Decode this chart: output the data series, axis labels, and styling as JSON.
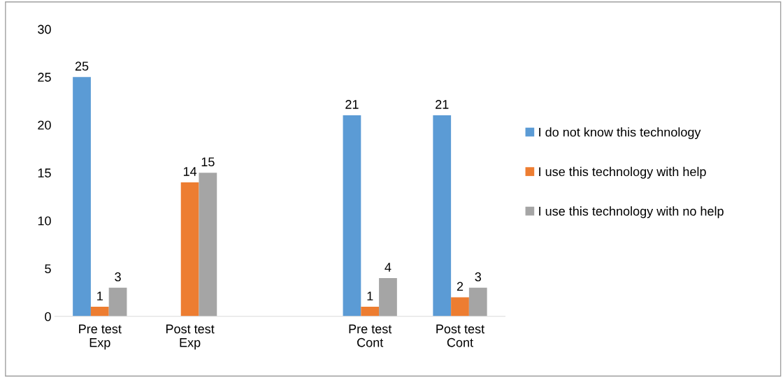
{
  "chart_data": {
    "type": "bar",
    "categories": [
      "Pre test\nExp",
      "Post test\nExp",
      null,
      "Pre test\nCont",
      "Post test\nCont"
    ],
    "series": [
      {
        "name": "I do not know this technology",
        "color": "#5b9bd5",
        "values": [
          25,
          null,
          null,
          21,
          21
        ]
      },
      {
        "name": "I use this technology with help",
        "color": "#ed7d31",
        "values": [
          1,
          14,
          null,
          1,
          2
        ]
      },
      {
        "name": "I use this technology with no help",
        "color": "#a5a5a5",
        "values": [
          3,
          15,
          null,
          4,
          3
        ]
      }
    ],
    "ylim": [
      0,
      30
    ],
    "yticks": [
      0,
      5,
      10,
      15,
      20,
      25,
      30
    ],
    "grid": false,
    "legend": "right",
    "data_labels": true
  }
}
